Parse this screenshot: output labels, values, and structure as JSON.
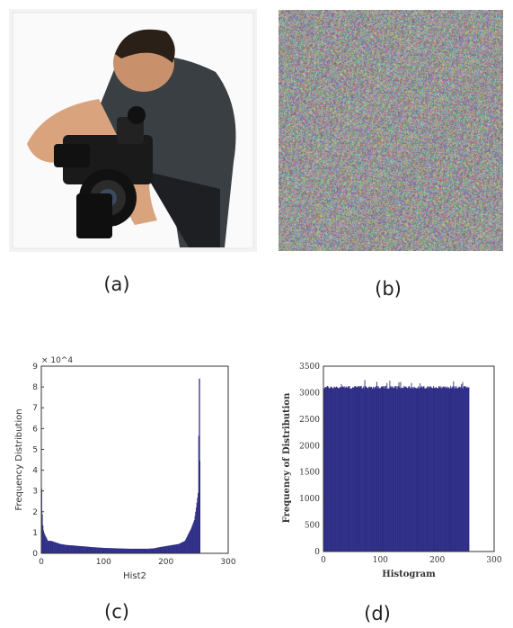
{
  "captions": {
    "a": "(a)",
    "b": "(b)",
    "c": "(c)",
    "d": "(d)"
  },
  "photo": {
    "subject": "cameraman-photo",
    "bg": "#f2f2f2"
  },
  "noise": {
    "subject": "encrypted-noise-image"
  },
  "colors": {
    "bar": "#2e2d87",
    "axis": "#333333"
  },
  "chart_data": [
    {
      "type": "bar",
      "xlabel": "Hist2",
      "ylabel": "Frequency Distribution",
      "exponent_label": "× 10^4",
      "xlim": [
        0,
        300
      ],
      "ylim": [
        0,
        9
      ],
      "xticks": [
        "0",
        "100",
        "200",
        "300"
      ],
      "yticks": [
        "0",
        "1",
        "2",
        "3",
        "4",
        "5",
        "6",
        "7",
        "8",
        "9"
      ],
      "x": [
        0,
        5,
        10,
        15,
        20,
        30,
        40,
        50,
        60,
        70,
        80,
        90,
        100,
        110,
        120,
        130,
        140,
        150,
        160,
        170,
        180,
        190,
        200,
        210,
        220,
        230,
        235,
        240,
        245,
        248,
        251,
        253,
        255
      ],
      "values": [
        3.1,
        0.9,
        0.6,
        0.6,
        0.55,
        0.45,
        0.4,
        0.38,
        0.35,
        0.33,
        0.3,
        0.28,
        0.26,
        0.25,
        0.24,
        0.23,
        0.22,
        0.22,
        0.22,
        0.22,
        0.24,
        0.3,
        0.35,
        0.4,
        0.45,
        0.6,
        0.9,
        1.2,
        1.6,
        2.2,
        2.9,
        8.4,
        0.5
      ]
    },
    {
      "type": "bar",
      "xlabel": "Histogram",
      "ylabel": "Frequency of Distribution",
      "xlim": [
        0,
        300
      ],
      "ylim": [
        0,
        3500
      ],
      "xticks": [
        "0",
        "100",
        "200",
        "300"
      ],
      "yticks": [
        "0",
        "500",
        "1000",
        "1500",
        "2000",
        "2500",
        "3000",
        "3500"
      ],
      "x": [
        0,
        255
      ],
      "values": [
        3100,
        3100
      ],
      "max_value": 3250
    }
  ]
}
